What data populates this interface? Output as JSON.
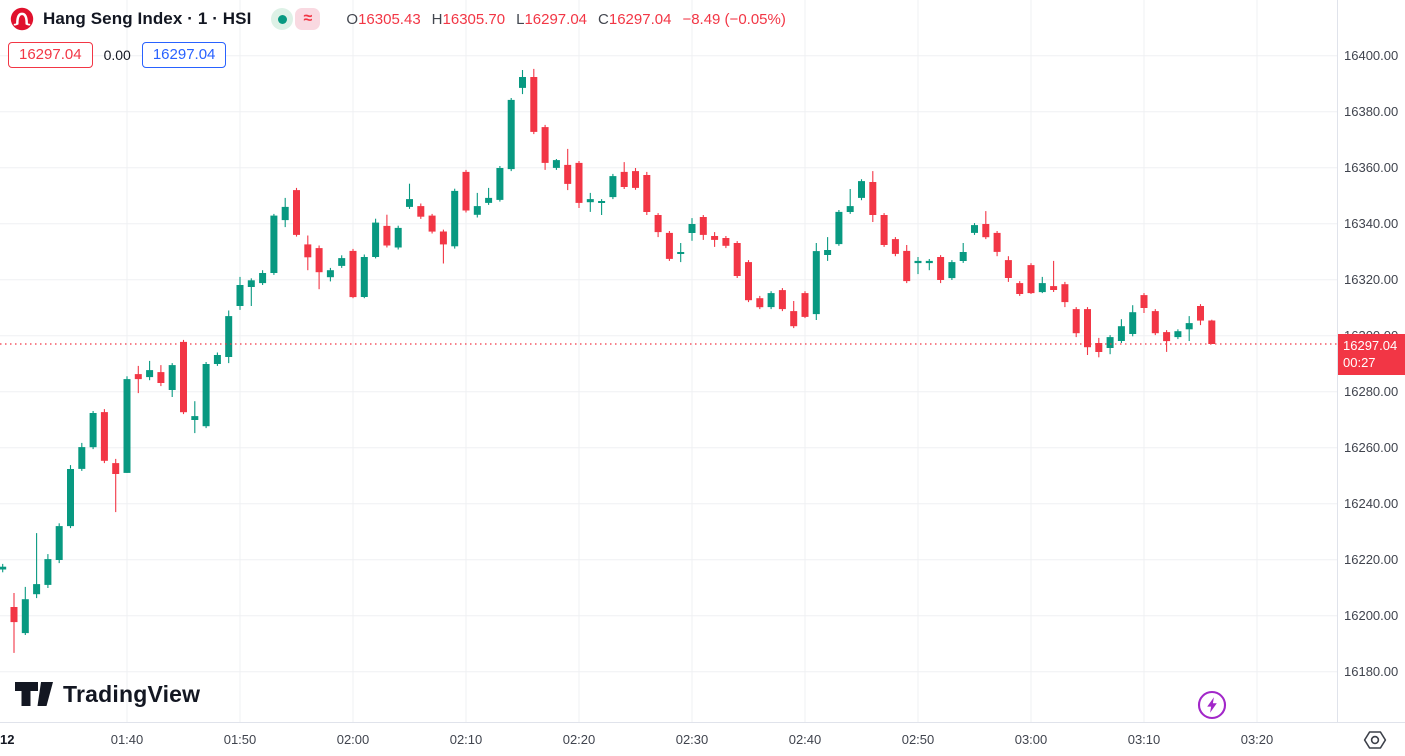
{
  "header": {
    "symbol_title": "Hang Seng Index · 1 · HSI",
    "symbol_logo": "hang-seng-red-circle",
    "market_status_icon": "market-open-green-dot",
    "data_mode_label": "≈",
    "ohlc": {
      "open_letter": "O",
      "open": "16305.43",
      "high_letter": "H",
      "high": "16305.70",
      "low_letter": "L",
      "low": "16297.04",
      "close_letter": "C",
      "close": "16297.04",
      "change": "−8.49 (−0.05%)"
    },
    "quote_badges": {
      "sell": "16297.04",
      "spread": "0.00",
      "buy": "16297.04"
    }
  },
  "watermark": {
    "logo": "tradingview-mark",
    "text": "TradingView"
  },
  "price_axis": {
    "tick_labels": [
      "16400.00",
      "16380.00",
      "16360.00",
      "16340.00",
      "16320.00",
      "16300.00",
      "16280.00",
      "16260.00",
      "16240.00",
      "16220.00",
      "16200.00",
      "16180.00"
    ],
    "last_price_label": "16297.04",
    "countdown": "00:27"
  },
  "time_axis": {
    "date_marker": "12",
    "tick_labels": [
      "01:40",
      "01:50",
      "02:00",
      "02:10",
      "02:20",
      "02:30",
      "02:40",
      "02:50",
      "03:00",
      "03:10",
      "03:20"
    ]
  },
  "floating_icons": {
    "lightning_button": "lightning-bolt-purple",
    "timezone_button": "hexagon-eye"
  },
  "colors": {
    "up": "#089981",
    "down": "#F23645",
    "accent_blue": "#2962FF",
    "grid": "#EFF0F3",
    "axis_text": "#40444E",
    "title_text": "#131722",
    "last_price_line": "#F23645",
    "purple": "#A227C9"
  },
  "chart_data": {
    "type": "candlestick",
    "title": "Hang Seng Index",
    "symbol": "HSI",
    "interval": "1",
    "legend_position": "top-left",
    "grid": true,
    "ylim": [
      16180,
      16400
    ],
    "price_tick_step": 20,
    "price_ticks": [
      16400,
      16380,
      16360,
      16340,
      16320,
      16300,
      16280,
      16260,
      16240,
      16220,
      16200,
      16180
    ],
    "time_ticks": [
      "01:40",
      "01:50",
      "02:00",
      "02:10",
      "02:20",
      "02:30",
      "02:40",
      "02:50",
      "03:00",
      "03:10",
      "03:20"
    ],
    "last_price": 16297.04,
    "session_change": -8.49,
    "session_change_pct": -0.05,
    "candles_format": [
      "time",
      "open",
      "high",
      "low",
      "close"
    ],
    "candles": [
      [
        "01:29",
        16216.5,
        16218.5,
        16215.5,
        16217.5
      ],
      [
        "01:30",
        16203.1,
        16208.1,
        16186.7,
        16197.7
      ],
      [
        "01:31",
        16193.8,
        16210.3,
        16193.1,
        16205.9
      ],
      [
        "01:32",
        16207.7,
        16229.5,
        16206.3,
        16211.3
      ],
      [
        "01:33",
        16211.0,
        16222.0,
        16209.9,
        16220.2
      ],
      [
        "01:34",
        16219.9,
        16233.0,
        16218.8,
        16232.0
      ],
      [
        "01:35",
        16232.0,
        16253.8,
        16231.3,
        16252.4
      ],
      [
        "01:36",
        16252.4,
        16261.7,
        16251.7,
        16260.2
      ],
      [
        "01:37",
        16260.2,
        16273.1,
        16259.5,
        16272.4
      ],
      [
        "01:38",
        16272.7,
        16273.8,
        16254.5,
        16255.3
      ],
      [
        "01:39",
        16254.5,
        16256.0,
        16237.0,
        16250.6
      ],
      [
        "01:40",
        16251.0,
        16285.5,
        16251.0,
        16284.5
      ],
      [
        "01:41",
        16286.3,
        16289.2,
        16279.5,
        16284.5
      ],
      [
        "01:42",
        16285.2,
        16291.0,
        16284.1,
        16287.7
      ],
      [
        "01:43",
        16287.0,
        16289.5,
        16282.0,
        16283.1
      ],
      [
        "01:44",
        16280.6,
        16290.2,
        16278.1,
        16289.5
      ],
      [
        "01:45",
        16297.8,
        16298.5,
        16272.0,
        16272.7
      ],
      [
        "01:46",
        16269.9,
        16276.6,
        16265.2,
        16271.3
      ],
      [
        "01:47",
        16267.7,
        16290.6,
        16267.0,
        16289.9
      ],
      [
        "01:48",
        16289.9,
        16294.0,
        16289.2,
        16293.1
      ],
      [
        "01:49",
        16292.4,
        16309.0,
        16290.2,
        16307.0
      ],
      [
        "01:50",
        16310.6,
        16321.0,
        16309.2,
        16318.1
      ],
      [
        "01:51",
        16317.4,
        16320.5,
        16310.6,
        16319.8
      ],
      [
        "01:52",
        16318.8,
        16323.4,
        16318.1,
        16322.4
      ],
      [
        "01:53",
        16322.4,
        16343.5,
        16321.7,
        16342.9
      ],
      [
        "01:54",
        16341.3,
        16349.2,
        16338.8,
        16346.0
      ],
      [
        "01:55",
        16352.0,
        16352.8,
        16335.4,
        16336.0
      ],
      [
        "01:56",
        16332.6,
        16335.8,
        16323.4,
        16328.0
      ],
      [
        "01:57",
        16331.3,
        16332.2,
        16316.6,
        16322.7
      ],
      [
        "01:58",
        16320.9,
        16324.2,
        16319.4,
        16323.4
      ],
      [
        "01:59",
        16324.9,
        16328.7,
        16324.2,
        16327.7
      ],
      [
        "02:00",
        16330.3,
        16331.0,
        16313.4,
        16313.8
      ],
      [
        "02:01",
        16313.8,
        16329.0,
        16313.4,
        16328.1
      ],
      [
        "02:02",
        16328.1,
        16341.8,
        16327.6,
        16340.4
      ],
      [
        "02:03",
        16339.2,
        16343.2,
        16331.5,
        16332.2
      ],
      [
        "02:04",
        16331.5,
        16339.3,
        16330.8,
        16338.5
      ],
      [
        "02:05",
        16346.0,
        16354.3,
        16345.3,
        16348.8
      ],
      [
        "02:06",
        16346.3,
        16347.2,
        16341.7,
        16342.5
      ],
      [
        "02:07",
        16342.9,
        16343.5,
        16336.5,
        16337.2
      ],
      [
        "02:08",
        16337.2,
        16337.9,
        16325.8,
        16332.6
      ],
      [
        "02:09",
        16331.9,
        16352.5,
        16331.1,
        16351.7
      ],
      [
        "02:10",
        16358.5,
        16359.2,
        16344.0,
        16344.7
      ],
      [
        "02:11",
        16343.2,
        16351.0,
        16342.2,
        16346.3
      ],
      [
        "02:12",
        16347.4,
        16352.8,
        16346.7,
        16349.2
      ],
      [
        "02:13",
        16348.5,
        16360.6,
        16347.9,
        16359.9
      ],
      [
        "02:14",
        16359.5,
        16384.9,
        16358.8,
        16384.2
      ],
      [
        "02:15",
        16388.5,
        16394.9,
        16386.3,
        16392.4
      ],
      [
        "02:16",
        16392.4,
        16395.3,
        16372.0,
        16372.8
      ],
      [
        "02:17",
        16374.5,
        16375.3,
        16359.2,
        16361.7
      ],
      [
        "02:18",
        16359.9,
        16363.1,
        16359.2,
        16362.7
      ],
      [
        "02:19",
        16361.0,
        16366.7,
        16352.0,
        16354.2
      ],
      [
        "02:20",
        16361.7,
        16362.4,
        16345.6,
        16347.4
      ],
      [
        "02:21",
        16347.7,
        16351.0,
        16344.2,
        16348.8
      ],
      [
        "02:22",
        16347.4,
        16348.8,
        16343.1,
        16348.1
      ],
      [
        "02:23",
        16349.5,
        16357.8,
        16348.8,
        16357.0
      ],
      [
        "02:24",
        16358.5,
        16362.0,
        16352.4,
        16353.1
      ],
      [
        "02:25",
        16358.8,
        16359.9,
        16352.1,
        16352.8
      ],
      [
        "02:26",
        16357.4,
        16358.5,
        16343.1,
        16344.2
      ],
      [
        "02:27",
        16343.1,
        16343.8,
        16335.2,
        16337.0
      ],
      [
        "02:28",
        16336.7,
        16337.4,
        16326.7,
        16327.4
      ],
      [
        "02:29",
        16329.2,
        16333.1,
        16326.3,
        16329.9
      ],
      [
        "02:30",
        16336.7,
        16342.0,
        16333.9,
        16339.9
      ],
      [
        "02:31",
        16342.4,
        16343.1,
        16334.2,
        16336.0
      ],
      [
        "02:32",
        16335.6,
        16337.0,
        16331.7,
        16334.2
      ],
      [
        "02:33",
        16334.9,
        16335.6,
        16331.3,
        16332.1
      ],
      [
        "02:34",
        16333.1,
        16333.8,
        16320.6,
        16321.3
      ],
      [
        "02:35",
        16326.3,
        16327.0,
        16312.0,
        16312.7
      ],
      [
        "02:36",
        16313.4,
        16314.2,
        16309.5,
        16310.2
      ],
      [
        "02:37",
        16310.2,
        16315.9,
        16309.5,
        16315.2
      ],
      [
        "02:38",
        16316.3,
        16317.0,
        16308.8,
        16309.5
      ],
      [
        "02:39",
        16308.8,
        16312.4,
        16302.7,
        16303.4
      ],
      [
        "02:40",
        16315.2,
        16315.9,
        16306.3,
        16306.7
      ],
      [
        "02:41",
        16307.7,
        16333.1,
        16305.6,
        16330.2
      ],
      [
        "02:42",
        16328.8,
        16335.2,
        16326.7,
        16330.6
      ],
      [
        "02:43",
        16332.7,
        16344.9,
        16332.1,
        16344.2
      ],
      [
        "02:44",
        16344.2,
        16352.4,
        16343.5,
        16346.3
      ],
      [
        "02:45",
        16349.2,
        16355.9,
        16348.4,
        16355.2
      ],
      [
        "02:46",
        16354.9,
        16358.8,
        16340.6,
        16343.1
      ],
      [
        "02:47",
        16343.1,
        16343.8,
        16331.7,
        16332.4
      ],
      [
        "02:48",
        16334.5,
        16335.2,
        16328.4,
        16329.2
      ],
      [
        "02:49",
        16330.3,
        16332.4,
        16318.8,
        16319.5
      ],
      [
        "02:50",
        16325.9,
        16328.1,
        16322.0,
        16326.7
      ],
      [
        "02:51",
        16325.9,
        16327.4,
        16323.4,
        16326.7
      ],
      [
        "02:52",
        16328.1,
        16328.8,
        16318.8,
        16319.9
      ],
      [
        "02:53",
        16320.6,
        16327.0,
        16319.9,
        16326.3
      ],
      [
        "02:54",
        16326.7,
        16333.1,
        16326.0,
        16329.9
      ],
      [
        "02:55",
        16336.7,
        16340.2,
        16336.0,
        16339.5
      ],
      [
        "02:56",
        16339.9,
        16344.5,
        16334.5,
        16335.2
      ],
      [
        "02:57",
        16336.7,
        16337.4,
        16328.4,
        16329.9
      ],
      [
        "02:58",
        16327.0,
        16328.4,
        16319.2,
        16320.6
      ],
      [
        "02:59",
        16318.8,
        16319.5,
        16314.2,
        16314.9
      ],
      [
        "03:00",
        16325.2,
        16325.9,
        16314.9,
        16315.2
      ],
      [
        "03:01",
        16315.6,
        16321.0,
        16315.2,
        16318.8
      ],
      [
        "03:02",
        16317.7,
        16326.7,
        16315.6,
        16316.3
      ],
      [
        "03:03",
        16318.4,
        16319.2,
        16310.2,
        16312.0
      ],
      [
        "03:04",
        16309.5,
        16310.2,
        16299.5,
        16300.9
      ],
      [
        "03:05",
        16309.5,
        16310.2,
        16293.1,
        16295.9
      ],
      [
        "03:06",
        16297.4,
        16299.2,
        16292.3,
        16294.2
      ],
      [
        "03:07",
        16295.6,
        16300.2,
        16293.4,
        16299.5
      ],
      [
        "03:08",
        16298.1,
        16305.9,
        16297.4,
        16303.4
      ],
      [
        "03:09",
        16300.6,
        16310.9,
        16299.8,
        16308.4
      ],
      [
        "03:10",
        16314.5,
        16315.2,
        16308.1,
        16309.9
      ],
      [
        "03:11",
        16308.8,
        16309.5,
        16300.2,
        16300.9
      ],
      [
        "03:12",
        16301.3,
        16302.0,
        16294.2,
        16298.1
      ],
      [
        "03:13",
        16299.5,
        16302.3,
        16298.8,
        16301.6
      ],
      [
        "03:14",
        16302.3,
        16307.0,
        16298.1,
        16304.5
      ],
      [
        "03:15",
        16310.6,
        16311.3,
        16303.8,
        16305.4
      ],
      [
        "03:16",
        16305.43,
        16305.7,
        16297.04,
        16297.04
      ]
    ]
  }
}
